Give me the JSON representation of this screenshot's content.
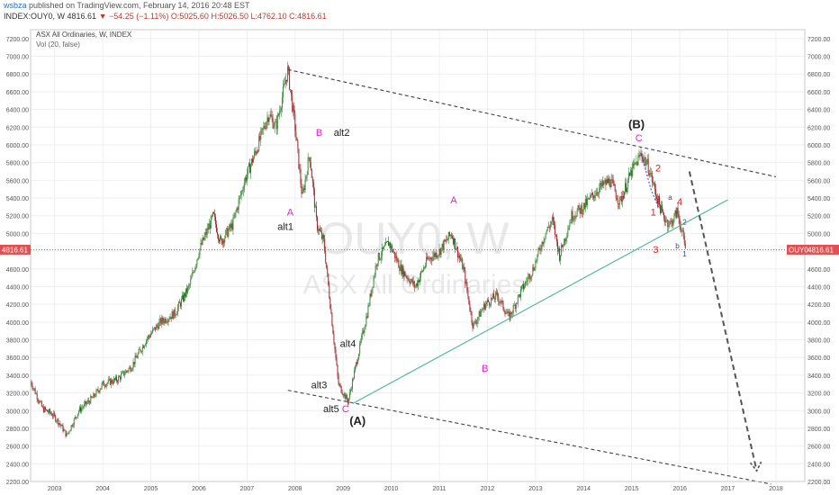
{
  "header": {
    "publisher_user": "wsbza",
    "publisher_text": "published on TradingView.com, February 14, 2016 20:48 EST",
    "symbol": "INDEX:OUY0, W",
    "last": "4816.61",
    "change": "▼ −54.25 (−1.11%)",
    "open": "O:5025.60",
    "high": "H:5026.50",
    "low": "L:4762.10",
    "close": "C:4816.61"
  },
  "legend": {
    "title": "ASX All Ordinaries, W, INDEX",
    "volume": "Vol (20, false)"
  },
  "watermark": {
    "symbol": "OUY0, W",
    "name": "ASX All Ordinaries"
  },
  "price_tags": {
    "left": "4816.61",
    "right_symbol": "OUY0",
    "right_value": "4816.61"
  },
  "colors": {
    "up": "#3c8a3c",
    "down": "#9b2a2a",
    "trend": "#48b49a",
    "pink": "#e020c8",
    "red": "#e02020",
    "blue": "#2a3fd0",
    "price_line": "#e05050"
  },
  "chart_data": {
    "type": "candlestick",
    "timeframe": "W",
    "ylim": [
      2200,
      7300
    ],
    "xlim": [
      2002.5,
      2018.6
    ],
    "y_ticks": [
      "2200.00",
      "2400.00",
      "2600.00",
      "2800.00",
      "3000.00",
      "3200.00",
      "3400.00",
      "3600.00",
      "3800.00",
      "4000.00",
      "4200.00",
      "4400.00",
      "4600.00",
      "4800.00",
      "5000.00",
      "5200.00",
      "5400.00",
      "5600.00",
      "5800.00",
      "6000.00",
      "6200.00",
      "6400.00",
      "6600.00",
      "6800.00",
      "7000.00",
      "7200.00"
    ],
    "x_ticks": [
      "2003",
      "2004",
      "2005",
      "2006",
      "2007",
      "2008",
      "2009",
      "2010",
      "2011",
      "2012",
      "2013",
      "2014",
      "2015",
      "2016",
      "2017",
      "2018"
    ],
    "last_price": 4816.61,
    "price_path": [
      [
        2002.5,
        3330
      ],
      [
        2002.75,
        3020
      ],
      [
        2002.95,
        2960
      ],
      [
        2003.1,
        2860
      ],
      [
        2003.25,
        2720
      ],
      [
        2003.5,
        3000
      ],
      [
        2003.8,
        3150
      ],
      [
        2004.0,
        3300
      ],
      [
        2004.3,
        3350
      ],
      [
        2004.6,
        3500
      ],
      [
        2004.9,
        3800
      ],
      [
        2005.2,
        4000
      ],
      [
        2005.5,
        4100
      ],
      [
        2005.8,
        4400
      ],
      [
        2006.0,
        4800
      ],
      [
        2006.3,
        5200
      ],
      [
        2006.45,
        4900
      ],
      [
        2006.7,
        5100
      ],
      [
        2006.95,
        5600
      ],
      [
        2007.2,
        5950
      ],
      [
        2007.45,
        6350
      ],
      [
        2007.6,
        6200
      ],
      [
        2007.85,
        6850
      ],
      [
        2008.0,
        6200
      ],
      [
        2008.15,
        5400
      ],
      [
        2008.3,
        5900
      ],
      [
        2008.45,
        5100
      ],
      [
        2008.6,
        4900
      ],
      [
        2008.75,
        4100
      ],
      [
        2008.9,
        3300
      ],
      [
        2009.1,
        3100
      ],
      [
        2009.3,
        3600
      ],
      [
        2009.5,
        4100
      ],
      [
        2009.7,
        4700
      ],
      [
        2009.95,
        4900
      ],
      [
        2010.2,
        4600
      ],
      [
        2010.5,
        4400
      ],
      [
        2010.75,
        4700
      ],
      [
        2011.0,
        4800
      ],
      [
        2011.25,
        5000
      ],
      [
        2011.5,
        4600
      ],
      [
        2011.7,
        3950
      ],
      [
        2011.95,
        4200
      ],
      [
        2012.2,
        4300
      ],
      [
        2012.45,
        4050
      ],
      [
        2012.7,
        4350
      ],
      [
        2012.95,
        4600
      ],
      [
        2013.2,
        5000
      ],
      [
        2013.35,
        5150
      ],
      [
        2013.5,
        4750
      ],
      [
        2013.75,
        5200
      ],
      [
        2014.0,
        5300
      ],
      [
        2014.3,
        5500
      ],
      [
        2014.55,
        5600
      ],
      [
        2014.75,
        5350
      ],
      [
        2015.0,
        5700
      ],
      [
        2015.2,
        5900
      ],
      [
        2015.35,
        5750
      ],
      [
        2015.5,
        5450
      ],
      [
        2015.65,
        5200
      ],
      [
        2015.8,
        5100
      ],
      [
        2015.95,
        5250
      ],
      [
        2016.05,
        5000
      ],
      [
        2016.12,
        4816
      ]
    ],
    "lines": [
      {
        "kind": "dashed",
        "points": [
          [
            2007.85,
            6850
          ],
          [
            2018.0,
            5640
          ]
        ]
      },
      {
        "kind": "dashed",
        "points": [
          [
            2007.85,
            3230
          ],
          [
            2017.9,
            2170
          ]
        ]
      },
      {
        "kind": "trend",
        "points": [
          [
            2009.2,
            3080
          ],
          [
            2017.0,
            5380
          ]
        ]
      },
      {
        "kind": "projection",
        "points": [
          [
            2016.2,
            5700
          ],
          [
            2017.6,
            2320
          ]
        ]
      }
    ],
    "annotations": [
      {
        "text": "(B)",
        "x": 2015.1,
        "y": 6190,
        "color": "black",
        "size": 13
      },
      {
        "text": "C",
        "x": 2015.15,
        "y": 6040,
        "color": "pink",
        "size": 11
      },
      {
        "text": "B",
        "x": 2008.5,
        "y": 6100,
        "color": "pink",
        "size": 11
      },
      {
        "text": "alt2",
        "x": 2008.97,
        "y": 6100,
        "color": "black",
        "size": 11
      },
      {
        "text": "A",
        "x": 2007.9,
        "y": 5200,
        "color": "pink",
        "size": 11
      },
      {
        "text": "alt1",
        "x": 2007.8,
        "y": 5040,
        "color": "black",
        "size": 11
      },
      {
        "text": "A",
        "x": 2011.3,
        "y": 5340,
        "color": "pink",
        "size": 11
      },
      {
        "text": "alt4",
        "x": 2009.1,
        "y": 3720,
        "color": "black",
        "size": 11
      },
      {
        "text": "B",
        "x": 2011.95,
        "y": 3440,
        "color": "pink",
        "size": 11
      },
      {
        "text": "alt3",
        "x": 2008.5,
        "y": 3250,
        "color": "black",
        "size": 11
      },
      {
        "text": "alt5",
        "x": 2008.75,
        "y": 2980,
        "color": "black",
        "size": 11
      },
      {
        "text": "C",
        "x": 2009.05,
        "y": 2980,
        "color": "pink",
        "size": 11
      },
      {
        "text": "(A)",
        "x": 2009.3,
        "y": 2840,
        "color": "black",
        "size": 13
      },
      {
        "text": "2",
        "x": 2015.55,
        "y": 5700,
        "color": "red",
        "size": 11
      },
      {
        "text": "1",
        "x": 2015.45,
        "y": 5200,
        "color": "red",
        "size": 11
      },
      {
        "text": "4",
        "x": 2016.0,
        "y": 5320,
        "color": "red",
        "size": 11
      },
      {
        "text": "3",
        "x": 2015.5,
        "y": 4780,
        "color": "red",
        "size": 11
      },
      {
        "text": "a",
        "x": 2015.8,
        "y": 5380,
        "color": "blue",
        "size": 8
      },
      {
        "text": "2",
        "x": 2016.1,
        "y": 5100,
        "color": "blue",
        "size": 8
      },
      {
        "text": "b",
        "x": 2015.95,
        "y": 4830,
        "color": "blue",
        "size": 8
      },
      {
        "text": "1",
        "x": 2016.1,
        "y": 4740,
        "color": "blue",
        "size": 8
      }
    ]
  }
}
